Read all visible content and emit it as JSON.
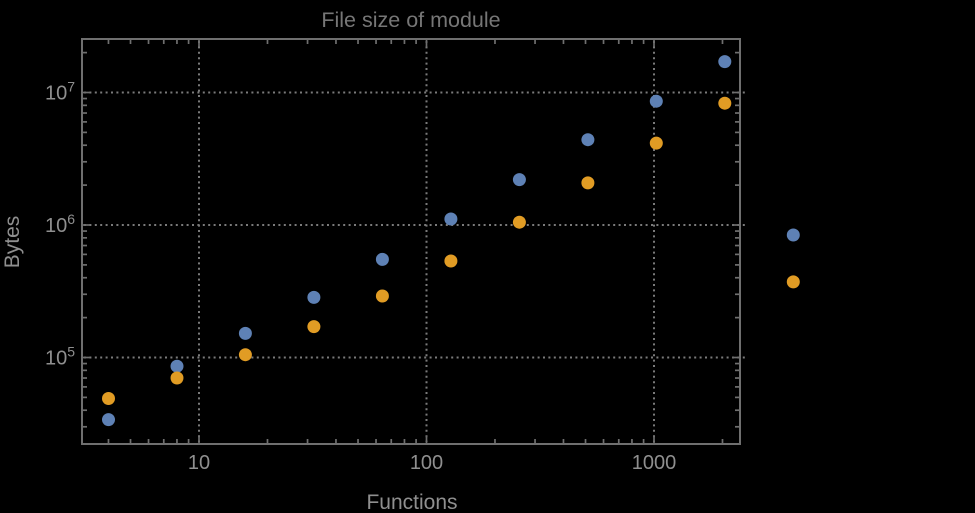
{
  "title": "File size of module",
  "axes": {
    "x_label": "Functions",
    "y_label": "Bytes",
    "x_tick_labels": [
      {
        "text": "10",
        "value": 10
      },
      {
        "text": "100",
        "value": 100
      },
      {
        "text": "1000",
        "value": 1000
      }
    ],
    "y_tick_labels": [
      {
        "base": "10",
        "exp": "5",
        "value": 100000
      },
      {
        "base": "10",
        "exp": "6",
        "value": 1000000
      },
      {
        "base": "10",
        "exp": "7",
        "value": 10000000
      }
    ]
  },
  "style": {
    "background": "#000000",
    "frame_color": "#6f6f6f",
    "grid_color": "#7a7a7a",
    "tick_color": "#6f6f6f",
    "tick_label_color": "#8f8f8f",
    "axis_label_color": "#8f8f8f",
    "title_color": "#767676",
    "point_colors": {
      "blue": "#5E81B5",
      "orange": "#E19C24"
    }
  },
  "chart_data": {
    "type": "scatter",
    "title": "File size of module",
    "xlabel": "Functions",
    "ylabel": "Bytes",
    "x_scale": "log",
    "y_scale": "log",
    "xlim": [
      3.1,
      2350
    ],
    "ylim": [
      21500,
      24000000
    ],
    "grid": "dotted lines at powers of ten, gray",
    "legend": "none",
    "marker": "filled circle, ~13px diameter",
    "note": "points at x=4096 fall outside the right edge of the plot frame",
    "x": [
      4,
      8,
      16,
      32,
      64,
      128,
      256,
      512,
      1024,
      2048,
      4096
    ],
    "series": [
      {
        "name": "blue",
        "color": "#5E81B5",
        "values": [
          34000,
          86000,
          152000,
          284000,
          550000,
          1110000,
          2200000,
          4400000,
          8600000,
          17100000,
          840000
        ]
      },
      {
        "name": "orange",
        "color": "#E19C24",
        "values": [
          49000,
          70000,
          105000,
          171000,
          291000,
          535000,
          1050000,
          2080000,
          4150000,
          8300000,
          372000
        ]
      }
    ]
  }
}
